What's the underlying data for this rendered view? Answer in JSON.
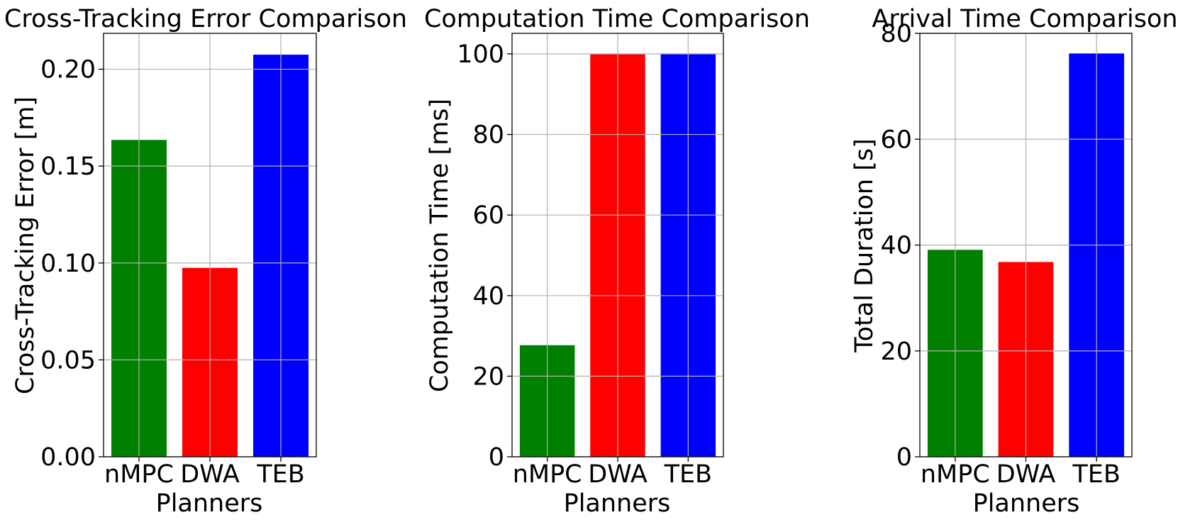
{
  "chart_data": [
    {
      "type": "bar",
      "title": "Cross-Tracking Error Comparison",
      "xlabel": "Planners",
      "ylabel": "Cross-Tracking Error [m]",
      "categories": [
        "nMPC",
        "DWA",
        "TEB"
      ],
      "values": [
        0.1635,
        0.0975,
        0.2075
      ],
      "colors": [
        "#008000",
        "#ff0000",
        "#0000ff"
      ],
      "ylim": [
        0,
        0.2185
      ],
      "yticks": [
        0.0,
        0.05,
        0.1,
        0.15,
        0.2
      ],
      "ytick_labels": [
        "0.00",
        "0.05",
        "0.10",
        "0.15",
        "0.20"
      ],
      "grid": true
    },
    {
      "type": "bar",
      "title": "Computation Time Comparison",
      "xlabel": "Planners",
      "ylabel": "Computation Time [ms]",
      "categories": [
        "nMPC",
        "DWA",
        "TEB"
      ],
      "values": [
        27.7,
        99.9,
        100.1
      ],
      "colors": [
        "#008000",
        "#ff0000",
        "#0000ff"
      ],
      "ylim": [
        0,
        105.1
      ],
      "yticks": [
        0,
        20,
        40,
        60,
        80,
        100
      ],
      "ytick_labels": [
        "0",
        "20",
        "40",
        "60",
        "80",
        "100"
      ],
      "grid": true
    },
    {
      "type": "bar",
      "title": "Arrival Time Comparison",
      "xlabel": "Planners",
      "ylabel": "Total Duration [s]",
      "categories": [
        "nMPC",
        "DWA",
        "TEB"
      ],
      "values": [
        39.1,
        36.8,
        76.2
      ],
      "colors": [
        "#008000",
        "#ff0000",
        "#0000ff"
      ],
      "ylim": [
        0,
        80
      ],
      "yticks": [
        0,
        20,
        40,
        60,
        80
      ],
      "ytick_labels": [
        "0",
        "20",
        "40",
        "60",
        "80"
      ],
      "grid": true
    }
  ]
}
